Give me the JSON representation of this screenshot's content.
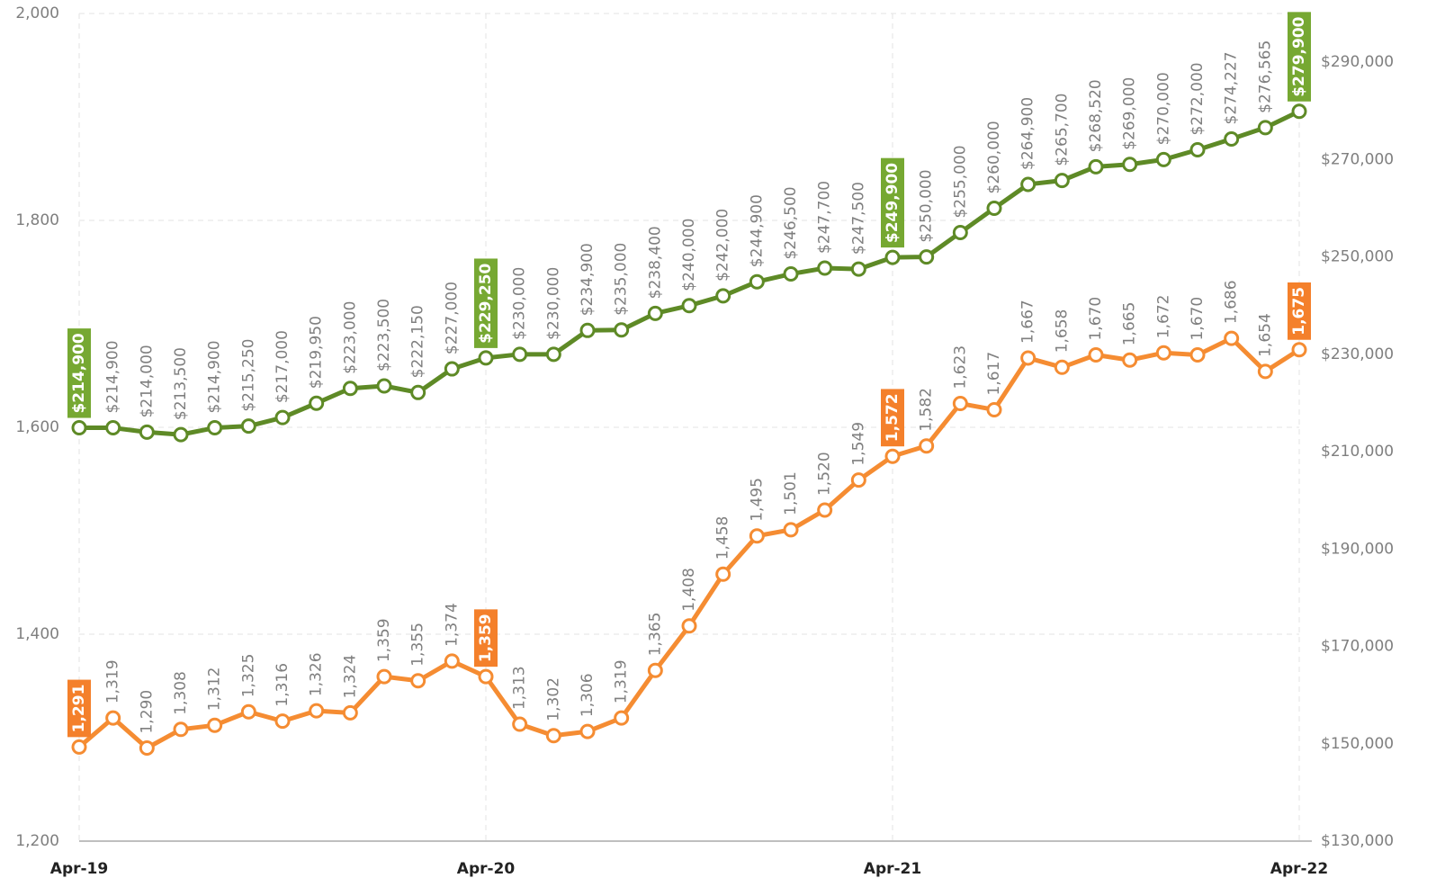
{
  "chart_data": {
    "type": "line",
    "categories": [
      "Apr-19",
      null,
      null,
      null,
      null,
      null,
      null,
      null,
      null,
      null,
      null,
      null,
      "Apr-20",
      null,
      null,
      null,
      null,
      null,
      null,
      null,
      null,
      null,
      null,
      null,
      "Apr-21",
      null,
      null,
      null,
      null,
      null,
      null,
      null,
      null,
      null,
      null,
      null,
      "Apr-22"
    ],
    "series": [
      {
        "color": "#f58c32",
        "highlight_color": "#f4802b",
        "values": [
          1291,
          1319,
          1290,
          1308,
          1312,
          1325,
          1316,
          1326,
          1324,
          1359,
          1355,
          1374,
          1359,
          1313,
          1302,
          1306,
          1319,
          1365,
          1408,
          1458,
          1495,
          1501,
          1520,
          1549,
          1572,
          1582,
          1623,
          1617,
          1667,
          1658,
          1670,
          1665,
          1672,
          1670,
          1686,
          1654,
          1675
        ],
        "value_labels": [
          "1,291",
          "1,319",
          "1,290",
          "1,308",
          "1,312",
          "1,325",
          "1,316",
          "1,326",
          "1,324",
          "1,359",
          "1,355",
          "1,374",
          "1,359",
          "1,313",
          "1,302",
          "1,306",
          "1,319",
          "1,365",
          "1,408",
          "1,458",
          "1,495",
          "1,501",
          "1,520",
          "1,549",
          "1,572",
          "1,582",
          "1,623",
          "1,617",
          "1,667",
          "1,658",
          "1,670",
          "1,665",
          "1,672",
          "1,670",
          "1,686",
          "1,654",
          "1,675"
        ]
      },
      {
        "color": "#5e8a26",
        "highlight_color": "#76a832",
        "axis": "y2",
        "values": [
          214900,
          214900,
          214000,
          213500,
          214900,
          215250,
          217000,
          219950,
          223000,
          223500,
          222150,
          227000,
          229250,
          230000,
          230000,
          234900,
          235000,
          238400,
          240000,
          242000,
          244900,
          246500,
          247700,
          247500,
          249900,
          250000,
          255000,
          260000,
          264900,
          265700,
          268520,
          269000,
          270000,
          272000,
          274227,
          276565,
          279900
        ],
        "value_labels": [
          "$214,900",
          "$214,900",
          "$214,000",
          "$213,500",
          "$214,900",
          "$215,250",
          "$217,000",
          "$219,950",
          "$223,000",
          "$223,500",
          "$222,150",
          "$227,000",
          "$229,250",
          "$230,000",
          "$230,000",
          "$234,900",
          "$235,000",
          "$238,400",
          "$240,000",
          "$242,000",
          "$244,900",
          "$246,500",
          "$247,700",
          "$247,500",
          "$249,900",
          "$250,000",
          "$255,000",
          "$260,000",
          "$264,900",
          "$265,700",
          "$268,520",
          "$269,000",
          "$270,000",
          "$272,000",
          "$274,227",
          "$276,565",
          "$279,900"
        ]
      }
    ],
    "ylim": [
      1200,
      2000
    ],
    "yticks": [
      {
        "value": 1200,
        "label": "1,200"
      },
      {
        "value": 1400,
        "label": "1,400"
      },
      {
        "value": 1600,
        "label": "1,600"
      },
      {
        "value": 1800,
        "label": "1,800"
      },
      {
        "value": 2000,
        "label": "2,000"
      }
    ],
    "y2lim": [
      130000,
      300000
    ],
    "y2ticks": [
      {
        "value": 130000,
        "label": "$130,000"
      },
      {
        "value": 150000,
        "label": "$150,000"
      },
      {
        "value": 170000,
        "label": "$170,000"
      },
      {
        "value": 190000,
        "label": "$190,000"
      },
      {
        "value": 210000,
        "label": "$210,000"
      },
      {
        "value": 230000,
        "label": "$230,000"
      },
      {
        "value": 250000,
        "label": "$250,000"
      },
      {
        "value": 270000,
        "label": "$270,000"
      },
      {
        "value": 290000,
        "label": "$290,000"
      }
    ],
    "grid": true
  }
}
